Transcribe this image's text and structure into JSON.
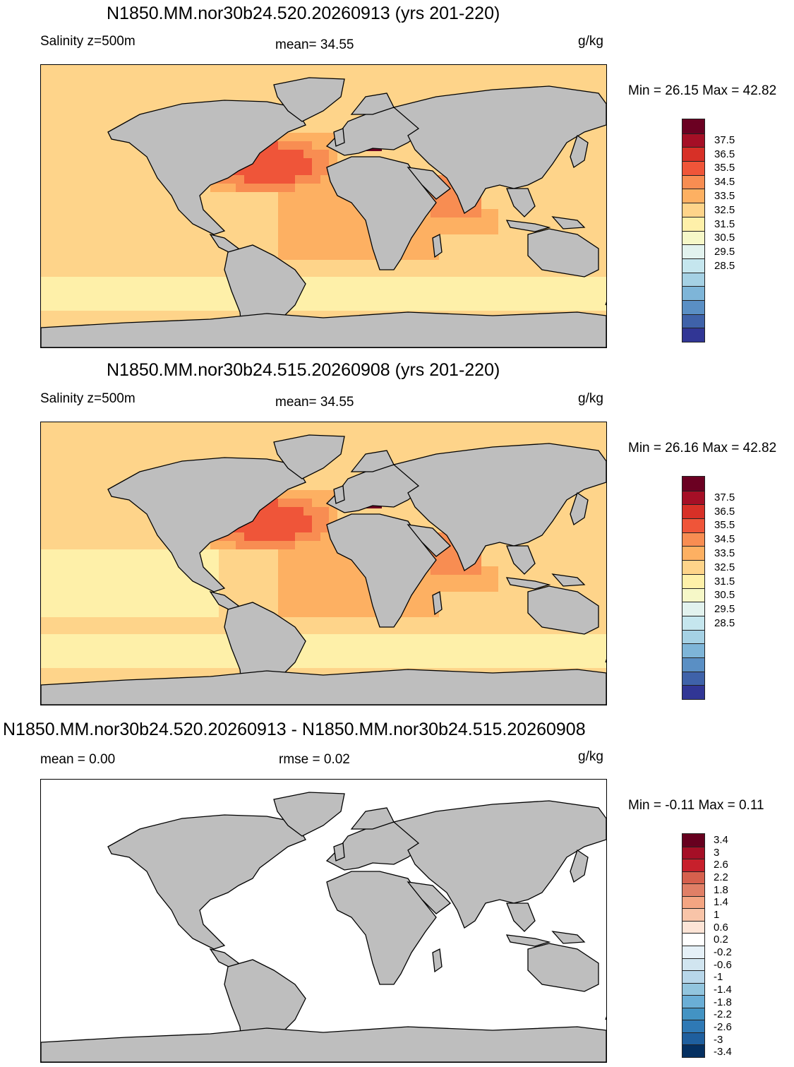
{
  "panels": [
    {
      "title": "N1850.MM.nor30b24.520.20260913 (yrs 201-220)",
      "left_label": "Salinity z=500m",
      "center_label": "mean=  34.55",
      "units": "g/kg",
      "minmax": "Min =  26.15 Max =  42.82",
      "colors": [
        "#6b0022",
        "#a50f26",
        "#d73027",
        "#ef5539",
        "#f88d52",
        "#fdb062",
        "#fed48a",
        "#fef0a9",
        "#f6f8c8",
        "#e2f2ee",
        "#c5e6ee",
        "#a5d1e4",
        "#7eb5d8",
        "#5a8fc4",
        "#3f62a9",
        "#313695"
      ],
      "ticks": [
        "37.5",
        "36.5",
        "35.5",
        "34.5",
        "33.5",
        "32.5",
        "31.5",
        "30.5",
        "29.5",
        "28.5"
      ],
      "ocean_color": "#fee39a"
    },
    {
      "title": "N1850.MM.nor30b24.515.20260908 (yrs 201-220)",
      "left_label": "Salinity z=500m",
      "center_label": "mean=  34.55",
      "units": "g/kg",
      "minmax": "Min =  26.16 Max =  42.82",
      "colors": [
        "#6b0022",
        "#a50f26",
        "#d73027",
        "#ef5539",
        "#f88d52",
        "#fdb062",
        "#fed48a",
        "#fef0a9",
        "#f6f8c8",
        "#e2f2ee",
        "#c5e6ee",
        "#a5d1e4",
        "#7eb5d8",
        "#5a8fc4",
        "#3f62a9",
        "#313695"
      ],
      "ticks": [
        "37.5",
        "36.5",
        "35.5",
        "34.5",
        "33.5",
        "32.5",
        "31.5",
        "30.5",
        "29.5",
        "28.5"
      ],
      "ocean_color": "#fee39a"
    },
    {
      "title": "N1850.MM.nor30b24.520.20260913 - N1850.MM.nor30b24.515.20260908",
      "left_label": "mean =    0.00",
      "center_label": "rmse =    0.02",
      "units": "g/kg",
      "minmax": "Min =  -0.11 Max =   0.11",
      "colors": [
        "#67001f",
        "#a50f26",
        "#c7202c",
        "#d6604d",
        "#e07f66",
        "#f4a582",
        "#f8c4a8",
        "#fde4d6",
        "#ffffff",
        "#e5f0f7",
        "#d1e5f0",
        "#b7d6e9",
        "#92c5de",
        "#6aaed6",
        "#4393c3",
        "#2f79b5",
        "#1f5f9e",
        "#053061"
      ],
      "ticks": [
        "3.4",
        "3",
        "2.6",
        "2.2",
        "1.8",
        "1.4",
        "1",
        "0.6",
        "0.2",
        "-0.2",
        "-0.6",
        "-1",
        "-1.4",
        "-1.8",
        "-2.2",
        "-2.6",
        "-3",
        "-3.4"
      ],
      "ocean_color": "#ffffff"
    }
  ]
}
